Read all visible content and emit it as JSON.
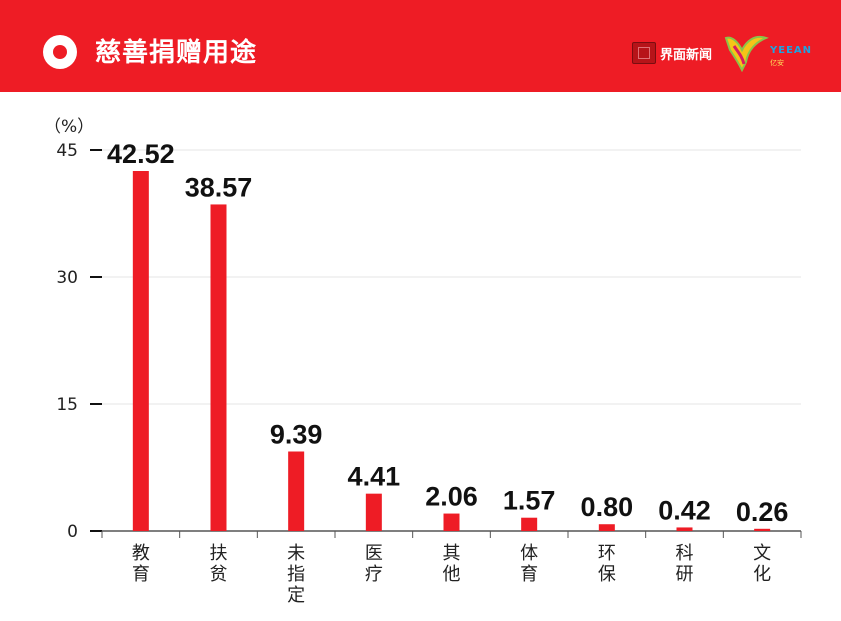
{
  "header": {
    "title": "慈善捐赠用途",
    "brand_primary": "界面新闻",
    "brand_secondary": "YEEAN",
    "brand_secondary_sub": "亿安",
    "bg_color": "#ee1c25"
  },
  "chart_data": {
    "type": "bar",
    "unit_label": "（%）",
    "categories": [
      "教育",
      "扶贫",
      "未指定",
      "医疗",
      "其他",
      "体育",
      "环保",
      "科研",
      "文化"
    ],
    "values": [
      42.52,
      38.57,
      9.39,
      4.41,
      2.06,
      1.57,
      0.8,
      0.42,
      0.26
    ],
    "value_labels": [
      "42.52",
      "38.57",
      "9.39",
      "4.41",
      "2.06",
      "1.57",
      "0.80",
      "0.42",
      "0.26"
    ],
    "y_ticks": [
      "0",
      "15",
      "30",
      "45"
    ],
    "y_tick_values": [
      0,
      15,
      30,
      45
    ],
    "ylim": [
      0,
      45
    ],
    "grid": true,
    "bar_color": "#ee1c25"
  }
}
